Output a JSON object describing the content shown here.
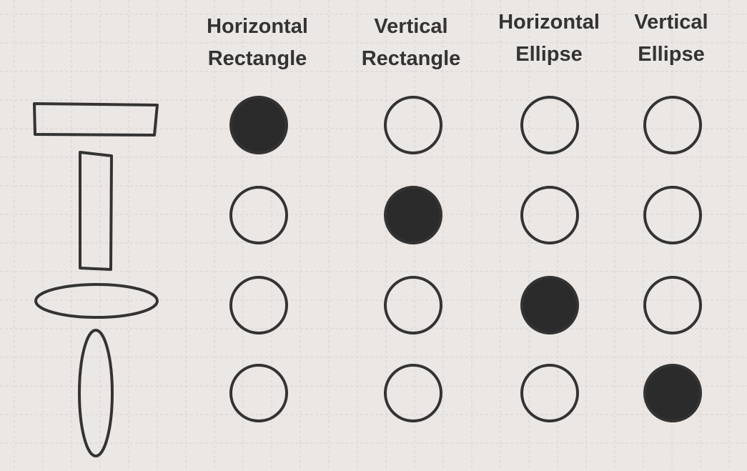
{
  "columns": [
    {
      "line1": "Horizontal",
      "line2": "Rectangle"
    },
    {
      "line1": "Vertical",
      "line2": "Rectangle"
    },
    {
      "line1": "Horizontal",
      "line2": "Ellipse"
    },
    {
      "line1": "Vertical",
      "line2": "Ellipse"
    }
  ],
  "rows": [
    {
      "shape": "horizontal-rectangle",
      "marks": [
        true,
        false,
        false,
        false
      ]
    },
    {
      "shape": "vertical-rectangle",
      "marks": [
        false,
        true,
        false,
        false
      ]
    },
    {
      "shape": "horizontal-ellipse",
      "marks": [
        false,
        false,
        true,
        false
      ]
    },
    {
      "shape": "vertical-ellipse",
      "marks": [
        false,
        false,
        false,
        true
      ]
    }
  ],
  "colors": {
    "background": "#ebe7e4",
    "grid": "#d8d3cf",
    "stroke": "#333333",
    "fill": "#2b2b2b"
  }
}
